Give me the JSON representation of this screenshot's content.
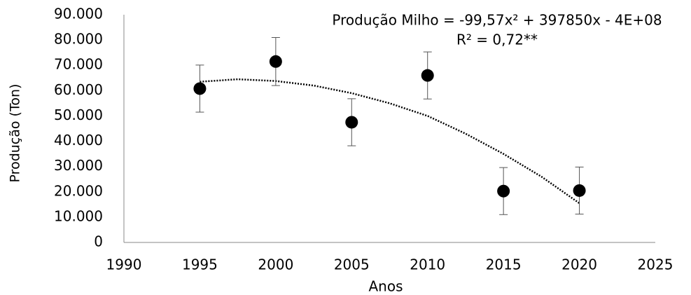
{
  "chart_data": {
    "type": "scatter",
    "x_label": "Anos",
    "y_label": "Produção (Ton)",
    "annotations": [
      "Produção Milho = -99,57x² + 397850x - 4E+08",
      "R² = 0,72**"
    ],
    "series": [
      {
        "color": "#000000",
        "x": [
          1995,
          2000,
          2005,
          2010,
          2015,
          2020
        ],
        "values": [
          60800,
          71500,
          47500,
          66000,
          20300,
          20500
        ],
        "errors": [
          9300,
          9500,
          9300,
          9300,
          9300,
          9300
        ]
      }
    ],
    "trendline": {
      "style": "dotted",
      "color": "#000000",
      "x": [
        1995,
        1997.5,
        2000,
        2002.5,
        2005,
        2007.5,
        2010,
        2012.5,
        2015,
        2017.5,
        2020
      ],
      "values": [
        63500,
        64500,
        63800,
        62000,
        59000,
        55000,
        50000,
        43000,
        35000,
        26000,
        15500
      ]
    },
    "xlim": [
      1990,
      2025
    ],
    "xticks": [
      1990,
      1995,
      2000,
      2005,
      2010,
      2015,
      2020,
      2025
    ],
    "ylim": [
      0,
      90000
    ],
    "yticks": [
      0,
      {
        "value": 10000,
        "label": "10.000"
      },
      {
        "value": 20000,
        "label": "20.000"
      },
      {
        "value": 30000,
        "label": "30.000"
      },
      {
        "value": 40000,
        "label": "40.000"
      },
      {
        "value": 50000,
        "label": "50.000"
      },
      {
        "value": 60000,
        "label": "60.000"
      },
      {
        "value": 70000,
        "label": "70.000"
      },
      {
        "value": 80000,
        "label": "80.000"
      },
      {
        "value": 90000,
        "label": "90.000"
      }
    ],
    "grid": false
  }
}
